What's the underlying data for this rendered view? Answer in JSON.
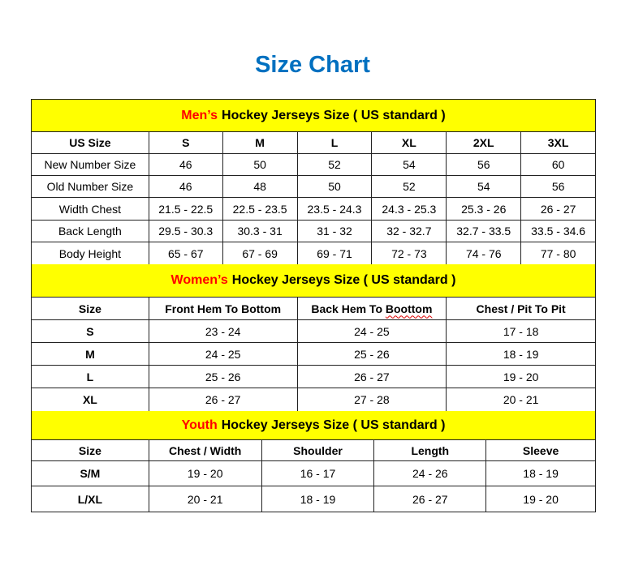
{
  "title": "Size Chart",
  "colors": {
    "title": "#0070C0",
    "section_bg": "#FFFF00",
    "highlight": "#FF0000"
  },
  "men": {
    "heading_highlight": "Men’s",
    "heading_rest": "Hockey Jerseys Size ( US standard )",
    "headers": [
      "US Size",
      "S",
      "M",
      "L",
      "XL",
      "2XL",
      "3XL"
    ],
    "rows": [
      [
        "New Number Size",
        "46",
        "50",
        "52",
        "54",
        "56",
        "60"
      ],
      [
        "Old Number Size",
        "46",
        "48",
        "50",
        "52",
        "54",
        "56"
      ],
      [
        "Width Chest",
        "21.5 - 22.5",
        "22.5 - 23.5",
        "23.5 - 24.3",
        "24.3 - 25.3",
        "25.3 - 26",
        "26 - 27"
      ],
      [
        "Back Length",
        "29.5 - 30.3",
        "30.3 - 31",
        "31 - 32",
        "32 - 32.7",
        "32.7 - 33.5",
        "33.5 - 34.6"
      ],
      [
        "Body Height",
        "65 - 67",
        "67 - 69",
        "69 - 71",
        "72 - 73",
        "74 - 76",
        "77 - 80"
      ]
    ]
  },
  "women": {
    "heading_highlight": "Women’s",
    "heading_rest": "Hockey Jerseys Size ( US standard )",
    "headers": [
      "Size",
      "Front Hem To Bottom",
      "Back Hem To Boottom",
      "Chest / Pit To Pit"
    ],
    "rows": [
      [
        "S",
        "23 - 24",
        "24 - 25",
        "17 - 18"
      ],
      [
        "M",
        "24 - 25",
        "25 - 26",
        "18 - 19"
      ],
      [
        "L",
        "25 - 26",
        "26 - 27",
        "19 - 20"
      ],
      [
        "XL",
        "26 - 27",
        "27 - 28",
        "20 - 21"
      ]
    ]
  },
  "youth": {
    "heading_highlight": "Youth",
    "heading_rest": "Hockey Jerseys Size ( US standard )",
    "headers": [
      "Size",
      "Chest / Width",
      "Shoulder",
      "Length",
      "Sleeve"
    ],
    "rows": [
      [
        "S/M",
        "19 - 20",
        "16 - 17",
        "24 - 26",
        "18 - 19"
      ],
      [
        "L/XL",
        "20 - 21",
        "18 - 19",
        "26 - 27",
        "19 - 20"
      ]
    ]
  }
}
